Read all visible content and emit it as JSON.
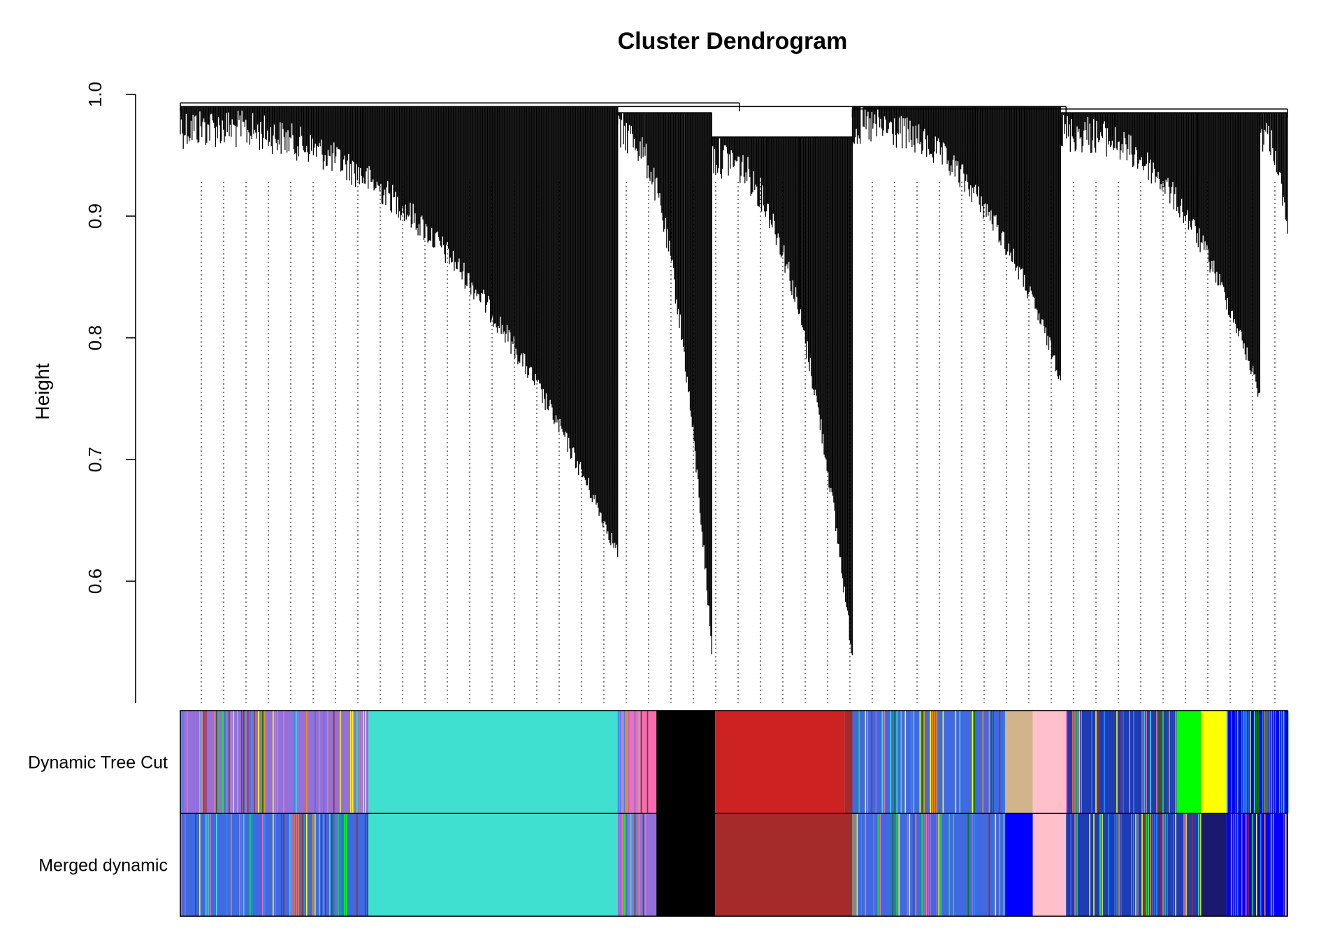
{
  "chart_data": {
    "type": "dendrogram",
    "title": "Cluster Dendrogram",
    "xlabel": "",
    "ylabel": "Height",
    "ylim": [
      0.5,
      1.0
    ],
    "yticks": [
      {
        "value": 0.6,
        "label": "0.6"
      },
      {
        "value": 0.7,
        "label": "0.7"
      },
      {
        "value": 0.8,
        "label": "0.8"
      },
      {
        "value": 0.9,
        "label": "0.9"
      },
      {
        "value": 1.0,
        "label": "1.0"
      }
    ],
    "branches": [
      {
        "x_start": 0.0,
        "x_end": 0.395,
        "top": 0.99,
        "min": 0.63
      },
      {
        "x_start": 0.395,
        "x_end": 0.48,
        "top": 0.985,
        "min": 0.55
      },
      {
        "x_start": 0.48,
        "x_end": 0.607,
        "top": 0.965,
        "min": 0.545
      },
      {
        "x_start": 0.607,
        "x_end": 0.795,
        "top": 0.99,
        "min": 0.775
      },
      {
        "x_start": 0.795,
        "x_end": 0.975,
        "top": 0.985,
        "min": 0.76
      },
      {
        "x_start": 0.975,
        "x_end": 1.0,
        "top": 0.985,
        "min": 0.89
      }
    ],
    "merges": [
      {
        "x_left": 0.0,
        "x_right": 0.505,
        "height": 0.993
      },
      {
        "x_left": 0.395,
        "x_right": 0.8,
        "height": 0.99
      },
      {
        "x_left": 0.607,
        "x_right": 1.0,
        "height": 0.988
      }
    ],
    "color_rows": [
      {
        "label": "Dynamic Tree Cut",
        "segments": [
          {
            "x0": 0.0,
            "x1": 0.17,
            "color": "#9370db",
            "striped": true
          },
          {
            "x0": 0.17,
            "x1": 0.395,
            "color": "#40e0d0"
          },
          {
            "x0": 0.395,
            "x1": 0.43,
            "color": "#ff69b4",
            "striped": true
          },
          {
            "x0": 0.43,
            "x1": 0.483,
            "color": "#000000"
          },
          {
            "x0": 0.483,
            "x1": 0.6,
            "color": "#cc2222"
          },
          {
            "x0": 0.6,
            "x1": 0.607,
            "color": "#a52a2a"
          },
          {
            "x0": 0.607,
            "x1": 0.745,
            "color": "#4169e1",
            "striped": true
          },
          {
            "x0": 0.745,
            "x1": 0.77,
            "color": "#d2b48c"
          },
          {
            "x0": 0.77,
            "x1": 0.8,
            "color": "#ffc0cb"
          },
          {
            "x0": 0.8,
            "x1": 0.9,
            "color": "#1e3cb4",
            "striped": true
          },
          {
            "x0": 0.9,
            "x1": 0.922,
            "color": "#00ff00"
          },
          {
            "x0": 0.922,
            "x1": 0.945,
            "color": "#ffff00"
          },
          {
            "x0": 0.945,
            "x1": 1.0,
            "color": "#0000ff",
            "striped": true
          }
        ]
      },
      {
        "label": "Merged dynamic",
        "segments": [
          {
            "x0": 0.0,
            "x1": 0.17,
            "color": "#4169e1",
            "striped": true
          },
          {
            "x0": 0.17,
            "x1": 0.395,
            "color": "#40e0d0"
          },
          {
            "x0": 0.395,
            "x1": 0.43,
            "color": "#9370db",
            "striped": true
          },
          {
            "x0": 0.43,
            "x1": 0.483,
            "color": "#000000"
          },
          {
            "x0": 0.483,
            "x1": 0.607,
            "color": "#a52a2a"
          },
          {
            "x0": 0.607,
            "x1": 0.745,
            "color": "#4169e1",
            "striped": true
          },
          {
            "x0": 0.745,
            "x1": 0.77,
            "color": "#0000ff"
          },
          {
            "x0": 0.77,
            "x1": 0.8,
            "color": "#ffc0cb"
          },
          {
            "x0": 0.8,
            "x1": 0.922,
            "color": "#1e3cb4",
            "striped": true
          },
          {
            "x0": 0.922,
            "x1": 0.945,
            "color": "#191970"
          },
          {
            "x0": 0.945,
            "x1": 1.0,
            "color": "#0000ff",
            "striped": true
          }
        ]
      }
    ],
    "grid": false,
    "legend": "none"
  }
}
